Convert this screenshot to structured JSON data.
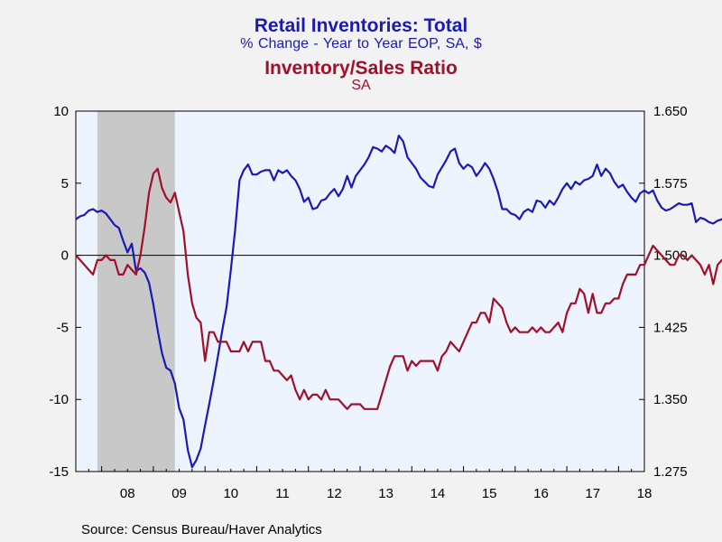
{
  "titles": {
    "line1": "Retail Inventories: Total",
    "line2": "% Change - Year to Year     EOP, SA, $",
    "line3": "Inventory/Sales Ratio",
    "line4": "SA"
  },
  "source": "Source:  Census Bureau/Haver Analytics",
  "colors": {
    "series1": "#1a1ab4",
    "series2": "#a0102a",
    "recession": "#c8c8c8",
    "plot_bg": "#eef4fe"
  },
  "chart_data": {
    "type": "line",
    "x_axis": {
      "start": 2007.5,
      "end": 2018.5,
      "tick_labels": [
        "08",
        "09",
        "10",
        "11",
        "12",
        "13",
        "14",
        "15",
        "16",
        "17",
        "18"
      ]
    },
    "y_left": {
      "ylim": [
        -15,
        10
      ],
      "ticks": [
        "10",
        "5",
        "0",
        "-5",
        "-10",
        "-15"
      ]
    },
    "y_right": {
      "ylim": [
        1.275,
        1.65
      ],
      "ticks": [
        "1.650",
        "1.575",
        "1.500",
        "1.425",
        "1.350",
        "1.275"
      ]
    },
    "recession": [
      2007.917,
      2009.417
    ],
    "zero_line": 0,
    "series": [
      {
        "name": "Retail Inventories: Total",
        "axis": "left",
        "start": 2007.5,
        "step": 0.08333,
        "values": [
          2.5,
          2.7,
          2.8,
          3.1,
          3.2,
          3.0,
          3.1,
          2.9,
          2.5,
          2.1,
          1.9,
          1.0,
          0.2,
          0.8,
          -1.1,
          -0.9,
          -1.2,
          -1.9,
          -3.4,
          -5.2,
          -6.8,
          -7.8,
          -8.0,
          -8.9,
          -10.6,
          -11.4,
          -13.5,
          -14.7,
          -14.2,
          -13.4,
          -11.8,
          -10.3,
          -8.7,
          -7.0,
          -5.2,
          -3.6,
          -1.0,
          1.8,
          5.2,
          5.9,
          6.3,
          5.6,
          5.6,
          5.8,
          5.9,
          5.9,
          5.2,
          5.9,
          5.7,
          5.9,
          5.5,
          5.2,
          4.6,
          3.7,
          4.0,
          3.2,
          3.3,
          3.8,
          3.9,
          4.3,
          4.6,
          4.1,
          4.6,
          5.5,
          4.7,
          5.5,
          5.9,
          6.3,
          6.8,
          7.5,
          7.4,
          7.2,
          7.6,
          7.4,
          7.1,
          8.3,
          7.9,
          6.8,
          6.4,
          6.0,
          5.4,
          5.1,
          4.8,
          4.7,
          5.6,
          6.1,
          6.6,
          7.2,
          7.4,
          6.4,
          6.0,
          6.3,
          6.1,
          5.5,
          5.9,
          6.4,
          6.0,
          5.3,
          4.4,
          3.2,
          3.2,
          2.9,
          2.8,
          2.5,
          3.0,
          3.2,
          3.0,
          3.8,
          3.7,
          3.3,
          3.8,
          3.5,
          4.0,
          4.6,
          5.0,
          4.6,
          5.1,
          4.9,
          5.2,
          5.3,
          5.5,
          6.3,
          5.5,
          6.0,
          5.7,
          5.1,
          4.7,
          4.9,
          4.4,
          4.0,
          3.7,
          4.3,
          4.5,
          4.3,
          4.5,
          3.8,
          3.3,
          3.1,
          3.2,
          3.4,
          3.6,
          3.5,
          3.5,
          3.6,
          2.3,
          2.6,
          2.5,
          2.3,
          2.2,
          2.4,
          2.5,
          2.3,
          1.6,
          2.0,
          2.3,
          2.2,
          1.7,
          2.3
        ]
      },
      {
        "name": "Inventory/Sales Ratio",
        "axis": "right",
        "start": 2007.5,
        "step": 0.08333,
        "values": [
          1.5,
          1.495,
          1.49,
          1.485,
          1.48,
          1.495,
          1.495,
          1.5,
          1.495,
          1.495,
          1.48,
          1.48,
          1.49,
          1.485,
          1.48,
          1.5,
          1.53,
          1.565,
          1.585,
          1.59,
          1.57,
          1.56,
          1.555,
          1.565,
          1.545,
          1.525,
          1.48,
          1.45,
          1.435,
          1.43,
          1.39,
          1.42,
          1.42,
          1.41,
          1.41,
          1.41,
          1.4,
          1.4,
          1.4,
          1.41,
          1.4,
          1.41,
          1.41,
          1.41,
          1.39,
          1.39,
          1.38,
          1.38,
          1.375,
          1.37,
          1.375,
          1.36,
          1.35,
          1.36,
          1.35,
          1.355,
          1.355,
          1.35,
          1.36,
          1.35,
          1.35,
          1.35,
          1.345,
          1.34,
          1.345,
          1.345,
          1.345,
          1.34,
          1.34,
          1.34,
          1.34,
          1.355,
          1.37,
          1.385,
          1.395,
          1.395,
          1.395,
          1.38,
          1.39,
          1.385,
          1.39,
          1.39,
          1.39,
          1.39,
          1.38,
          1.395,
          1.4,
          1.41,
          1.405,
          1.4,
          1.41,
          1.42,
          1.43,
          1.43,
          1.44,
          1.44,
          1.43,
          1.455,
          1.45,
          1.445,
          1.43,
          1.42,
          1.425,
          1.42,
          1.42,
          1.42,
          1.425,
          1.42,
          1.425,
          1.42,
          1.42,
          1.425,
          1.43,
          1.42,
          1.44,
          1.45,
          1.45,
          1.465,
          1.46,
          1.44,
          1.46,
          1.44,
          1.44,
          1.45,
          1.45,
          1.455,
          1.455,
          1.47,
          1.48,
          1.48,
          1.48,
          1.49,
          1.49,
          1.5,
          1.51,
          1.505,
          1.5,
          1.495,
          1.49,
          1.49,
          1.5,
          1.5,
          1.495,
          1.5,
          1.495,
          1.49,
          1.48,
          1.49,
          1.47,
          1.49,
          1.495,
          1.49,
          1.5,
          1.49,
          1.46,
          1.45,
          1.44,
          1.435,
          1.445,
          1.445,
          1.445,
          1.45,
          1.45,
          1.45,
          1.45,
          1.455,
          1.45,
          1.44,
          1.435,
          1.42,
          1.43
        ]
      }
    ]
  }
}
